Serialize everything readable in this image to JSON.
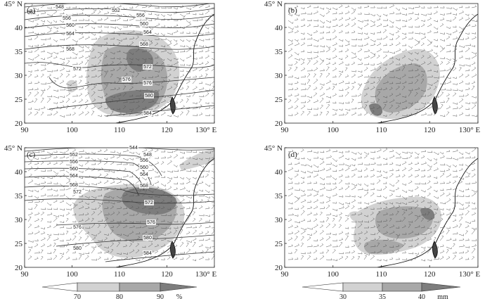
{
  "panels": [
    {
      "label": "(a)",
      "x_ticks": [
        "90",
        "100",
        "110",
        "120",
        "130° E"
      ],
      "y_ticks": [
        "45° N",
        "40",
        "35",
        "30",
        "25",
        "20"
      ],
      "contour_labels": [
        "548",
        "552",
        "552",
        "556",
        "556",
        "560",
        "560",
        "564",
        "564",
        "568",
        "568",
        "572",
        "572",
        "576",
        "576",
        "580",
        "584"
      ]
    },
    {
      "label": "(b)",
      "x_ticks": [
        "90",
        "100",
        "110",
        "120",
        "130° E"
      ],
      "y_ticks": [
        "45° N",
        "40",
        "35",
        "30",
        "25",
        "20"
      ],
      "contour_labels": []
    },
    {
      "label": "(c)",
      "x_ticks": [
        "90",
        "100",
        "110",
        "120",
        "130° E"
      ],
      "y_ticks": [
        "45° N",
        "40",
        "35",
        "30",
        "25",
        "20"
      ],
      "contour_labels": [
        "544",
        "548",
        "552",
        "556",
        "556",
        "560",
        "560",
        "564",
        "564",
        "568",
        "568",
        "572",
        "572",
        "576",
        "576",
        "580",
        "580",
        "584"
      ]
    },
    {
      "label": "(d)",
      "x_ticks": [
        "90",
        "100",
        "110",
        "120",
        "130° E"
      ],
      "y_ticks": [
        "45° N",
        "40",
        "35",
        "30",
        "25",
        "20"
      ],
      "contour_labels": []
    }
  ],
  "colorbars": [
    {
      "ticks": [
        "70",
        "80",
        "90"
      ],
      "unit": "%"
    },
    {
      "ticks": [
        "30",
        "35",
        "40"
      ],
      "unit": "mm"
    }
  ],
  "colors": {
    "shade_light": "#d2d2d2",
    "shade_mid": "#a8a8a8",
    "shade_dark": "#7d7d7d",
    "contour": "#333333",
    "wind_barb": "#555555",
    "coast": "#111111"
  }
}
